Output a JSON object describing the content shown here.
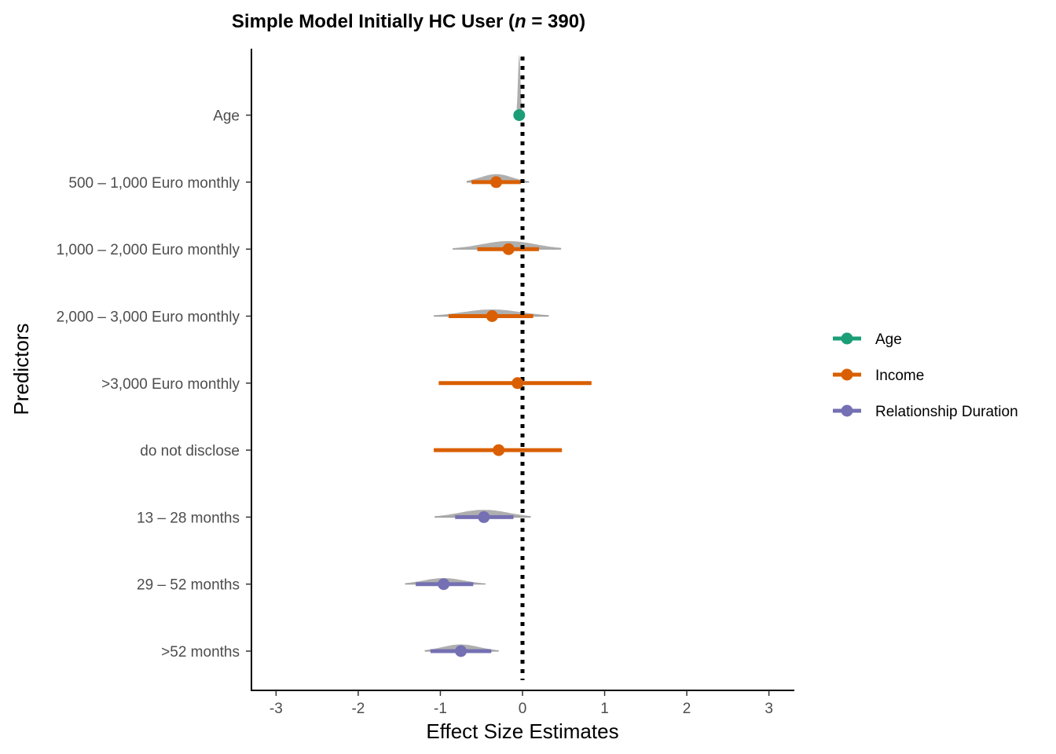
{
  "chart_data": {
    "type": "forest",
    "title_main": "Simple Model Initially HC User (",
    "title_n": "n",
    "title_rest": " = 390)",
    "xlabel": "Effect Size Estimates",
    "ylabel": "Predictors",
    "xlim": [
      -3.3,
      3.3
    ],
    "x_ticks": [
      -3,
      -2,
      -1,
      0,
      1,
      2,
      3
    ],
    "x_tick_labels": [
      "-3",
      "-2",
      "-1",
      "0",
      "1",
      "2",
      "3"
    ],
    "reference_line": 0,
    "grid": false,
    "legend_position": "right",
    "series_colors": {
      "Age": "#1b9e77",
      "Income": "#d95f02",
      "Relationship Duration": "#7570b3"
    },
    "density_color": "#a6a6a6",
    "legend": [
      {
        "label": "Age",
        "group": "Age"
      },
      {
        "label": "Income",
        "group": "Income"
      },
      {
        "label": "Relationship Duration",
        "group": "Relationship Duration"
      }
    ],
    "predictors": [
      {
        "label": "Age",
        "group": "Age",
        "estimate": -0.04,
        "ci_low": -0.06,
        "ci_high": -0.02,
        "outer_low": -0.07,
        "outer_high": -0.01,
        "density_height": 0.9
      },
      {
        "label": "500 – 1,000 Euro monthly",
        "group": "Income",
        "estimate": -0.32,
        "ci_low": -0.62,
        "ci_high": -0.02,
        "outer_low": -0.68,
        "outer_high": 0.08,
        "density_height": 0.12
      },
      {
        "label": "1,000 – 2,000 Euro monthly",
        "group": "Income",
        "estimate": -0.17,
        "ci_low": -0.55,
        "ci_high": 0.2,
        "outer_low": -0.85,
        "outer_high": 0.47,
        "density_height": 0.12
      },
      {
        "label": "2,000 – 3,000 Euro monthly",
        "group": "Income",
        "estimate": -0.37,
        "ci_low": -0.9,
        "ci_high": 0.13,
        "outer_low": -1.08,
        "outer_high": 0.32,
        "density_height": 0.1
      },
      {
        "label": ">3,000 Euro monthly",
        "group": "Income",
        "estimate": -0.06,
        "ci_low": -1.02,
        "ci_high": 0.84,
        "outer_low": -1.02,
        "outer_high": 0.84,
        "density_height": 0.02
      },
      {
        "label": "do not disclose",
        "group": "Income",
        "estimate": -0.29,
        "ci_low": -1.08,
        "ci_high": 0.48,
        "outer_low": -1.08,
        "outer_high": 0.48,
        "density_height": 0.02
      },
      {
        "label": "13 – 28 months",
        "group": "Relationship Duration",
        "estimate": -0.47,
        "ci_low": -0.82,
        "ci_high": -0.11,
        "outer_low": -1.07,
        "outer_high": 0.1,
        "density_height": 0.11
      },
      {
        "label": "29 – 52 months",
        "group": "Relationship Duration",
        "estimate": -0.96,
        "ci_low": -1.3,
        "ci_high": -0.6,
        "outer_low": -1.43,
        "outer_high": -0.45,
        "density_height": 0.09
      },
      {
        "label": ">52 months",
        "group": "Relationship Duration",
        "estimate": -0.75,
        "ci_low": -1.12,
        "ci_high": -0.38,
        "outer_low": -1.19,
        "outer_high": -0.29,
        "density_height": 0.1
      }
    ]
  }
}
